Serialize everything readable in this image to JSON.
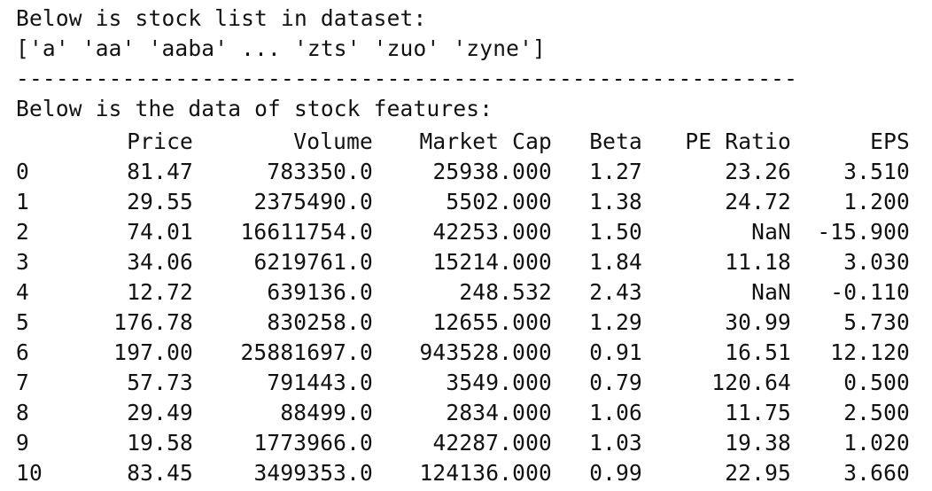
{
  "stock_list_heading": "Below is stock list in dataset:",
  "stock_list": "['a' 'aa' 'aaba' ... 'zts' 'zuo' 'zyne']",
  "separator": "-----------------------------------------------------------",
  "features_heading": "Below is the data of stock features:",
  "table": {
    "columns": [
      "",
      "Price",
      "Volume",
      "Market Cap",
      "Beta",
      "PE Ratio",
      "EPS"
    ],
    "rows": [
      [
        "0",
        "81.47",
        "783350.0",
        "25938.000",
        "1.27",
        "23.26",
        "3.510"
      ],
      [
        "1",
        "29.55",
        "2375490.0",
        "5502.000",
        "1.38",
        "24.72",
        "1.200"
      ],
      [
        "2",
        "74.01",
        "16611754.0",
        "42253.000",
        "1.50",
        "NaN",
        "-15.900"
      ],
      [
        "3",
        "34.06",
        "6219761.0",
        "15214.000",
        "1.84",
        "11.18",
        "3.030"
      ],
      [
        "4",
        "12.72",
        "639136.0",
        "248.532",
        "2.43",
        "NaN",
        "-0.110"
      ],
      [
        "5",
        "176.78",
        "830258.0",
        "12655.000",
        "1.29",
        "30.99",
        "5.730"
      ],
      [
        "6",
        "197.00",
        "25881697.0",
        "943528.000",
        "0.91",
        "16.51",
        "12.120"
      ],
      [
        "7",
        "57.73",
        "791443.0",
        "3549.000",
        "0.79",
        "120.64",
        "0.500"
      ],
      [
        "8",
        "29.49",
        "88499.0",
        "2834.000",
        "1.06",
        "11.75",
        "2.500"
      ],
      [
        "9",
        "19.58",
        "1773966.0",
        "42287.000",
        "1.03",
        "19.38",
        "1.020"
      ],
      [
        "10",
        "83.45",
        "3499353.0",
        "124136.000",
        "0.99",
        "22.95",
        "3.660"
      ]
    ]
  }
}
